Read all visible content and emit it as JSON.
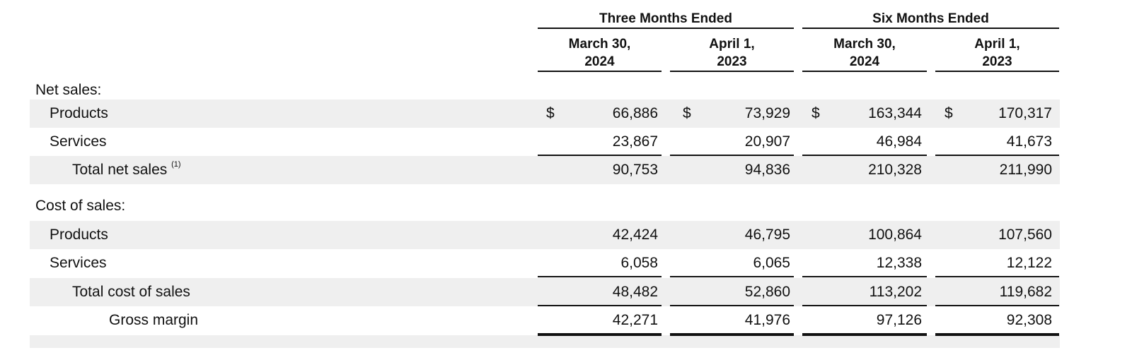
{
  "header": {
    "groups": [
      "Three Months Ended",
      "Six Months Ended"
    ],
    "columns": [
      {
        "line1": "March 30,",
        "line2": "2024"
      },
      {
        "line1": "April 1,",
        "line2": "2023"
      },
      {
        "line1": "March 30,",
        "line2": "2024"
      },
      {
        "line1": "April 1,",
        "line2": "2023"
      }
    ]
  },
  "currency_symbol": "$",
  "rows": [
    {
      "label": "Net sales:",
      "values": []
    },
    {
      "label": "Products",
      "values": [
        "66,886",
        "73,929",
        "163,344",
        "170,317"
      ]
    },
    {
      "label": "Services",
      "values": [
        "23,867",
        "20,907",
        "46,984",
        "41,673"
      ]
    },
    {
      "label": "Total net sales",
      "footnote": "(1)",
      "values": [
        "90,753",
        "94,836",
        "210,328",
        "211,990"
      ]
    },
    {
      "label": "Cost of sales:",
      "values": []
    },
    {
      "label": "Products",
      "values": [
        "42,424",
        "46,795",
        "100,864",
        "107,560"
      ]
    },
    {
      "label": "Services",
      "values": [
        "6,058",
        "6,065",
        "12,338",
        "12,122"
      ]
    },
    {
      "label": "Total cost of sales",
      "values": [
        "48,482",
        "52,860",
        "113,202",
        "119,682"
      ]
    },
    {
      "label": "Gross margin",
      "values": [
        "42,271",
        "41,976",
        "97,126",
        "92,308"
      ]
    }
  ]
}
